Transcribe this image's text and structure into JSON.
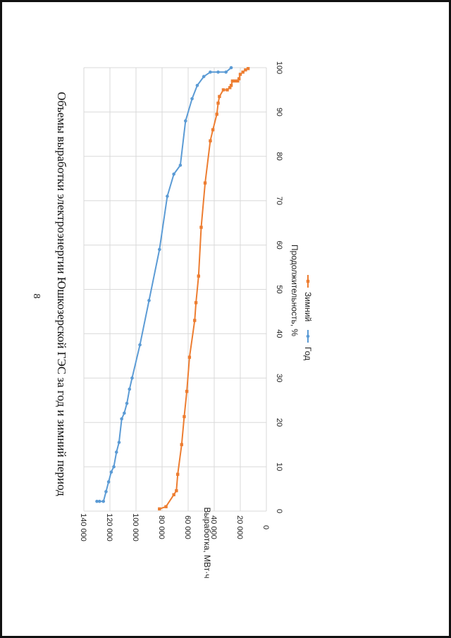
{
  "page_number": "8",
  "chart_data": {
    "type": "line",
    "title": "Объемы выработки электроэнергии Юшкозерской ГЭС за год и зимний период",
    "xlabel": "Продолжительность, %",
    "ylabel": "Выработка, МВт·ч",
    "xlim": [
      0,
      100
    ],
    "ylim": [
      0,
      140000
    ],
    "x_ticks": [
      "0",
      "10",
      "20",
      "30",
      "40",
      "50",
      "60",
      "70",
      "80",
      "90",
      "100"
    ],
    "y_ticks": [
      "0",
      "20 000",
      "40 000",
      "60 000",
      "80 000",
      "100 000",
      "120 000",
      "140 000"
    ],
    "grid": true,
    "legend_position": "bottom",
    "series": [
      {
        "name": "Год",
        "color": "#5b9bd5",
        "marker": "circle",
        "x": [
          2.2,
          2.2,
          2.2,
          4.4,
          6.6,
          8.8,
          10.0,
          13.3,
          15.5,
          20.8,
          22.1,
          24.3,
          27.5,
          30.0,
          37.5,
          47.5,
          59.0,
          71.0,
          76.0,
          78.0,
          88.0,
          93.0,
          96.0,
          98.0,
          99.0,
          99.0,
          99.0,
          100.0
        ],
        "y": [
          130000,
          128000,
          125000,
          123000,
          121000,
          119000,
          117000,
          115000,
          113000,
          111000,
          109000,
          107000,
          105000,
          103000,
          97000,
          90000,
          82000,
          76000,
          71000,
          66000,
          62000,
          57000,
          53000,
          48000,
          43000,
          37000,
          31000,
          27000
        ]
      },
      {
        "name": "Зимний",
        "color": "#ed7d31",
        "marker": "square",
        "x": [
          0.5,
          1.0,
          3.7,
          4.6,
          8.3,
          15.0,
          21.3,
          27.0,
          34.7,
          43.0,
          47.0,
          53.0,
          64.0,
          74.0,
          83.5,
          86.0,
          89.5,
          92.0,
          93.5,
          95.0,
          95.0,
          95.5,
          96.0,
          97.0,
          97.0,
          97.0,
          97.5,
          98.5,
          99.0,
          99.5,
          99.8
        ],
        "y": [
          82000,
          77000,
          71000,
          69000,
          68000,
          65000,
          63000,
          61000,
          59000,
          55000,
          54000,
          52000,
          50000,
          47000,
          43000,
          41000,
          38000,
          37000,
          36000,
          33000,
          30000,
          28000,
          27000,
          26000,
          24000,
          22000,
          21000,
          20000,
          18000,
          16000,
          14000
        ]
      }
    ]
  }
}
